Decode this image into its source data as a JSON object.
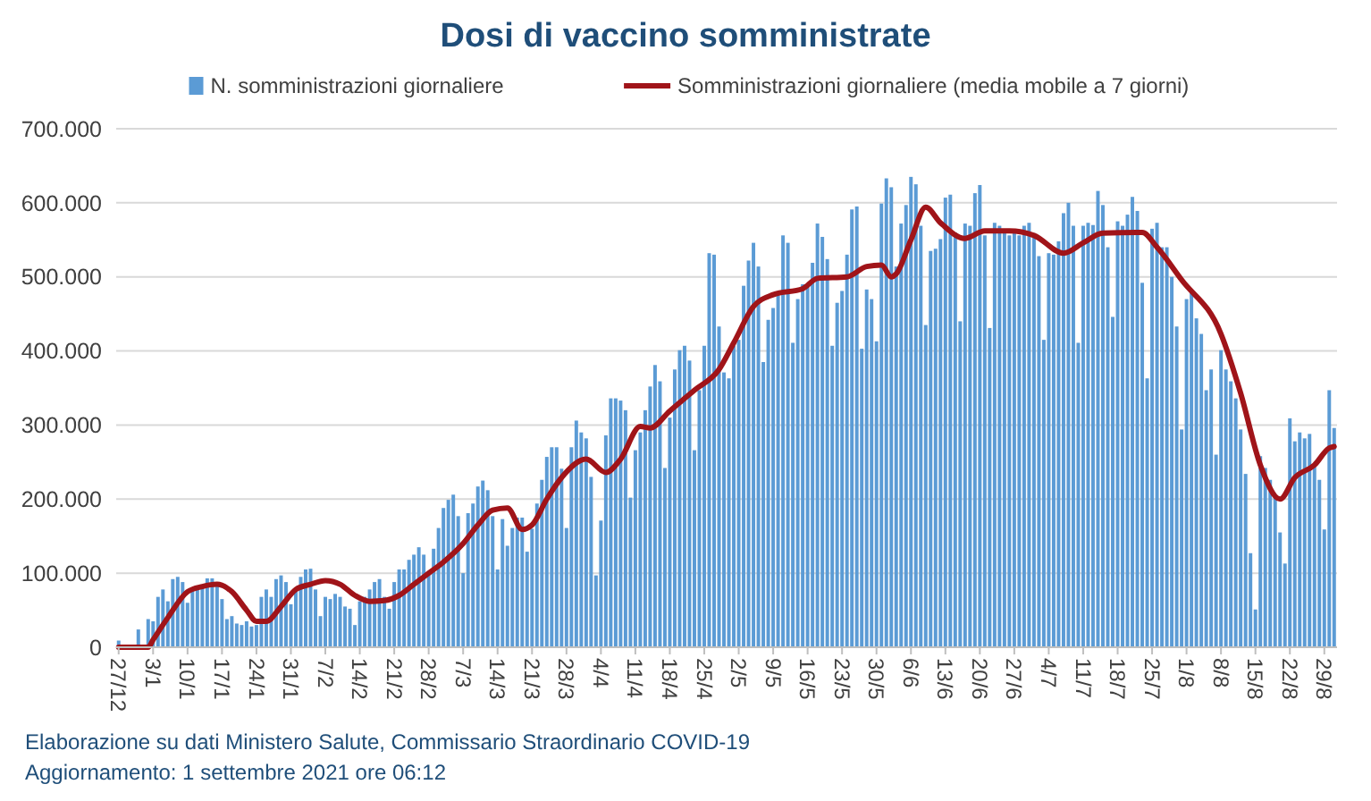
{
  "chart_data": {
    "type": "bar",
    "title": "Dosi di vaccino somministrate",
    "x": [
      "2020-12-27",
      "2020-12-28",
      "2020-12-29",
      "2020-12-30",
      "2020-12-31",
      "2021-01-01",
      "2021-01-02",
      "2021-01-03",
      "2021-01-04",
      "2021-01-05",
      "2021-01-06",
      "2021-01-07",
      "2021-01-08",
      "2021-01-09",
      "2021-01-10",
      "2021-01-11",
      "2021-01-12",
      "2021-01-13",
      "2021-01-14",
      "2021-01-15",
      "2021-01-16",
      "2021-01-17",
      "2021-01-18",
      "2021-01-19",
      "2021-01-20",
      "2021-01-21",
      "2021-01-22",
      "2021-01-23",
      "2021-01-24",
      "2021-01-25",
      "2021-01-26",
      "2021-01-27",
      "2021-01-28",
      "2021-01-29",
      "2021-01-30",
      "2021-01-31",
      "2021-02-01",
      "2021-02-02",
      "2021-02-03",
      "2021-02-04",
      "2021-02-05",
      "2021-02-06",
      "2021-02-07",
      "2021-02-08",
      "2021-02-09",
      "2021-02-10",
      "2021-02-11",
      "2021-02-12",
      "2021-02-13",
      "2021-02-14",
      "2021-02-15",
      "2021-02-16",
      "2021-02-17",
      "2021-02-18",
      "2021-02-19",
      "2021-02-20",
      "2021-02-21",
      "2021-02-22",
      "2021-02-23",
      "2021-02-24",
      "2021-02-25",
      "2021-02-26",
      "2021-02-27",
      "2021-02-28",
      "2021-03-01",
      "2021-03-02",
      "2021-03-03",
      "2021-03-04",
      "2021-03-05",
      "2021-03-06",
      "2021-03-07",
      "2021-03-08",
      "2021-03-09",
      "2021-03-10",
      "2021-03-11",
      "2021-03-12",
      "2021-03-13",
      "2021-03-14",
      "2021-03-15",
      "2021-03-16",
      "2021-03-17",
      "2021-03-18",
      "2021-03-19",
      "2021-03-20",
      "2021-03-21",
      "2021-03-22",
      "2021-03-23",
      "2021-03-24",
      "2021-03-25",
      "2021-03-26",
      "2021-03-27",
      "2021-03-28",
      "2021-03-29",
      "2021-03-30",
      "2021-03-31",
      "2021-04-01",
      "2021-04-02",
      "2021-04-03",
      "2021-04-04",
      "2021-04-05",
      "2021-04-06",
      "2021-04-07",
      "2021-04-08",
      "2021-04-09",
      "2021-04-10",
      "2021-04-11",
      "2021-04-12",
      "2021-04-13",
      "2021-04-14",
      "2021-04-15",
      "2021-04-16",
      "2021-04-17",
      "2021-04-18",
      "2021-04-19",
      "2021-04-20",
      "2021-04-21",
      "2021-04-22",
      "2021-04-23",
      "2021-04-24",
      "2021-04-25",
      "2021-04-26",
      "2021-04-27",
      "2021-04-28",
      "2021-04-29",
      "2021-04-30",
      "2021-05-01",
      "2021-05-02",
      "2021-05-03",
      "2021-05-04",
      "2021-05-05",
      "2021-05-06",
      "2021-05-07",
      "2021-05-08",
      "2021-05-09",
      "2021-05-10",
      "2021-05-11",
      "2021-05-12",
      "2021-05-13",
      "2021-05-14",
      "2021-05-15",
      "2021-05-16",
      "2021-05-17",
      "2021-05-18",
      "2021-05-19",
      "2021-05-20",
      "2021-05-21",
      "2021-05-22",
      "2021-05-23",
      "2021-05-24",
      "2021-05-25",
      "2021-05-26",
      "2021-05-27",
      "2021-05-28",
      "2021-05-29",
      "2021-05-30",
      "2021-05-31",
      "2021-06-01",
      "2021-06-02",
      "2021-06-03",
      "2021-06-04",
      "2021-06-05",
      "2021-06-06",
      "2021-06-07",
      "2021-06-08",
      "2021-06-09",
      "2021-06-10",
      "2021-06-11",
      "2021-06-12",
      "2021-06-13",
      "2021-06-14",
      "2021-06-15",
      "2021-06-16",
      "2021-06-17",
      "2021-06-18",
      "2021-06-19",
      "2021-06-20",
      "2021-06-21",
      "2021-06-22",
      "2021-06-23",
      "2021-06-24",
      "2021-06-25",
      "2021-06-26",
      "2021-06-27",
      "2021-06-28",
      "2021-06-29",
      "2021-06-30",
      "2021-07-01",
      "2021-07-02",
      "2021-07-03",
      "2021-07-04",
      "2021-07-05",
      "2021-07-06",
      "2021-07-07",
      "2021-07-08",
      "2021-07-09",
      "2021-07-10",
      "2021-07-11",
      "2021-07-12",
      "2021-07-13",
      "2021-07-14",
      "2021-07-15",
      "2021-07-16",
      "2021-07-17",
      "2021-07-18",
      "2021-07-19",
      "2021-07-20",
      "2021-07-21",
      "2021-07-22",
      "2021-07-23",
      "2021-07-24",
      "2021-07-25",
      "2021-07-26",
      "2021-07-27",
      "2021-07-28",
      "2021-07-29",
      "2021-07-30",
      "2021-07-31",
      "2021-08-01",
      "2021-08-02",
      "2021-08-03",
      "2021-08-04",
      "2021-08-05",
      "2021-08-06",
      "2021-08-07",
      "2021-08-08",
      "2021-08-09",
      "2021-08-10",
      "2021-08-11",
      "2021-08-12",
      "2021-08-13",
      "2021-08-14",
      "2021-08-15",
      "2021-08-16",
      "2021-08-17",
      "2021-08-18",
      "2021-08-19",
      "2021-08-20",
      "2021-08-21",
      "2021-08-22",
      "2021-08-23",
      "2021-08-24",
      "2021-08-25",
      "2021-08-26",
      "2021-08-27",
      "2021-08-28",
      "2021-08-29",
      "2021-08-30",
      "2021-08-31"
    ],
    "series": [
      {
        "name": "N. somministrazioni giornaliere",
        "color": "#5b9bd5",
        "values": [
          9000,
          1000,
          2000,
          1000,
          24000,
          3000,
          38000,
          35000,
          68000,
          78000,
          62000,
          92000,
          95000,
          88000,
          60000,
          78000,
          80000,
          82000,
          93000,
          93000,
          85000,
          65000,
          38000,
          42000,
          32000,
          30000,
          35000,
          28000,
          30000,
          68000,
          78000,
          68000,
          92000,
          97000,
          88000,
          58000,
          80000,
          95000,
          105000,
          106000,
          78000,
          42000,
          68000,
          65000,
          72000,
          68000,
          55000,
          52000,
          30000,
          62000,
          68000,
          78000,
          88000,
          92000,
          68000,
          52000,
          88000,
          105000,
          105000,
          118000,
          125000,
          135000,
          125000,
          100000,
          133000,
          161000,
          188000,
          199000,
          206000,
          177000,
          100000,
          181000,
          194000,
          217000,
          225000,
          212000,
          177000,
          105000,
          173000,
          137000,
          161000,
          175000,
          175000,
          129000,
          160000,
          194000,
          226000,
          257000,
          270000,
          270000,
          241000,
          161000,
          270000,
          306000,
          290000,
          282000,
          230000,
          97000,
          171000,
          286000,
          336000,
          336000,
          333000,
          320000,
          202000,
          266000,
          290000,
          320000,
          352000,
          381000,
          359000,
          242000,
          310000,
          375000,
          401000,
          407000,
          387000,
          266000,
          347000,
          407000,
          532000,
          530000,
          433000,
          371000,
          363000,
          407000,
          415000,
          488000,
          522000,
          546000,
          514000,
          385000,
          442000,
          458000,
          478000,
          556000,
          546000,
          411000,
          470000,
          490000,
          490000,
          519000,
          572000,
          554000,
          524000,
          407000,
          465000,
          481000,
          530000,
          591000,
          595000,
          403000,
          483000,
          470000,
          413000,
          599000,
          633000,
          621000,
          514000,
          572000,
          597000,
          635000,
          625000,
          569000,
          435000,
          535000,
          538000,
          551000,
          607000,
          611000,
          560000,
          440000,
          572000,
          569000,
          613000,
          624000,
          556000,
          431000,
          573000,
          569000,
          560000,
          556000,
          560000,
          556000,
          569000,
          573000,
          559000,
          528000,
          415000,
          532000,
          530000,
          548000,
          586000,
          600000,
          569000,
          411000,
          569000,
          573000,
          570000,
          616000,
          597000,
          540000,
          446000,
          575000,
          569000,
          584000,
          608000,
          589000,
          492000,
          363000,
          565000,
          573000,
          540000,
          540000,
          500000,
          433000,
          294000,
          470000,
          478000,
          444000,
          423000,
          347000,
          375000,
          260000,
          401000,
          375000,
          359000,
          336000,
          294000,
          234000,
          127000,
          51000,
          258000,
          242000,
          226000,
          205000,
          155000,
          113000,
          309000,
          278000,
          290000,
          282000,
          288000,
          245000,
          226000,
          159000,
          347000,
          296000
        ]
      },
      {
        "name": "Somministrazioni giornaliere (media mobile a 7 giorni)",
        "type": "line",
        "color": "#a01419",
        "x": [
          "2020-12-27",
          "2021-01-02",
          "2021-01-03",
          "2021-01-06",
          "2021-01-10",
          "2021-01-13",
          "2021-01-16",
          "2021-01-19",
          "2021-01-22",
          "2021-01-24",
          "2021-01-26",
          "2021-01-29",
          "2021-02-01",
          "2021-02-04",
          "2021-02-07",
          "2021-02-10",
          "2021-02-13",
          "2021-02-16",
          "2021-02-19",
          "2021-02-22",
          "2021-02-25",
          "2021-02-28",
          "2021-03-03",
          "2021-03-07",
          "2021-03-10",
          "2021-03-13",
          "2021-03-16",
          "2021-03-19",
          "2021-03-21",
          "2021-03-24",
          "2021-03-27",
          "2021-04-01",
          "2021-04-05",
          "2021-04-08",
          "2021-04-12",
          "2021-04-14",
          "2021-04-18",
          "2021-04-23",
          "2021-04-28",
          "2021-05-01",
          "2021-05-05",
          "2021-05-09",
          "2021-05-15",
          "2021-05-18",
          "2021-05-24",
          "2021-05-28",
          "2021-05-31",
          "2021-06-02",
          "2021-06-03",
          "2021-06-06",
          "2021-06-09",
          "2021-06-12",
          "2021-06-17",
          "2021-06-21",
          "2021-06-26",
          "2021-07-01",
          "2021-07-07",
          "2021-07-11",
          "2021-07-15",
          "2021-07-23",
          "2021-07-26",
          "2021-07-31",
          "2021-08-08",
          "2021-08-12",
          "2021-08-16",
          "2021-08-20",
          "2021-08-23",
          "2021-08-27",
          "2021-08-30",
          "2021-08-31"
        ],
        "values": [
          0,
          0,
          10000,
          40000,
          75000,
          82000,
          85000,
          75000,
          50000,
          35000,
          35000,
          55000,
          78000,
          85000,
          90000,
          85000,
          70000,
          62000,
          63000,
          70000,
          85000,
          100000,
          115000,
          140000,
          165000,
          185000,
          188000,
          159000,
          165000,
          200000,
          229000,
          254000,
          236000,
          254000,
          298000,
          296000,
          319000,
          347000,
          375000,
          411000,
          460000,
          476000,
          484000,
          498000,
          500000,
          514000,
          516000,
          500000,
          504000,
          550000,
          594000,
          573000,
          552000,
          562000,
          562000,
          556000,
          532000,
          546000,
          559000,
          560000,
          540000,
          496000,
          423000,
          343000,
          246000,
          200000,
          229000,
          246000,
          269000,
          271000
        ]
      }
    ],
    "xlim": [
      "2020-12-26T12:00",
      "2021-08-31T14:00"
    ],
    "xticks": [
      {
        "value": "2020-12-27",
        "label": "27/12"
      },
      {
        "value": "2021-01-03",
        "label": "3/1"
      },
      {
        "value": "2021-01-10",
        "label": "10/1"
      },
      {
        "value": "2021-01-17",
        "label": "17/1"
      },
      {
        "value": "2021-01-24",
        "label": "24/1"
      },
      {
        "value": "2021-01-31",
        "label": "31/1"
      },
      {
        "value": "2021-02-07",
        "label": "7/2"
      },
      {
        "value": "2021-02-14",
        "label": "14/2"
      },
      {
        "value": "2021-02-21",
        "label": "21/2"
      },
      {
        "value": "2021-02-28",
        "label": "28/2"
      },
      {
        "value": "2021-03-07",
        "label": "7/3"
      },
      {
        "value": "2021-03-14",
        "label": "14/3"
      },
      {
        "value": "2021-03-21",
        "label": "21/3"
      },
      {
        "value": "2021-03-28",
        "label": "28/3"
      },
      {
        "value": "2021-04-04",
        "label": "4/4"
      },
      {
        "value": "2021-04-11",
        "label": "11/4"
      },
      {
        "value": "2021-04-18",
        "label": "18/4"
      },
      {
        "value": "2021-04-25",
        "label": "25/4"
      },
      {
        "value": "2021-05-02",
        "label": "2/5"
      },
      {
        "value": "2021-05-09",
        "label": "9/5"
      },
      {
        "value": "2021-05-16",
        "label": "16/5"
      },
      {
        "value": "2021-05-23",
        "label": "23/5"
      },
      {
        "value": "2021-05-30",
        "label": "30/5"
      },
      {
        "value": "2021-06-06",
        "label": "6/6"
      },
      {
        "value": "2021-06-13",
        "label": "13/6"
      },
      {
        "value": "2021-06-20",
        "label": "20/6"
      },
      {
        "value": "2021-06-27",
        "label": "27/6"
      },
      {
        "value": "2021-07-04",
        "label": "4/7"
      },
      {
        "value": "2021-07-11",
        "label": "11/7"
      },
      {
        "value": "2021-07-18",
        "label": "18/7"
      },
      {
        "value": "2021-07-25",
        "label": "25/7"
      },
      {
        "value": "2021-08-01",
        "label": "1/8"
      },
      {
        "value": "2021-08-08",
        "label": "8/8"
      },
      {
        "value": "2021-08-15",
        "label": "15/8"
      },
      {
        "value": "2021-08-22",
        "label": "22/8"
      },
      {
        "value": "2021-08-29",
        "label": "29/8"
      }
    ],
    "ylim": [
      0,
      700000
    ],
    "yticks": [
      0,
      {
        "value": 100000,
        "label": "100.000"
      },
      {
        "value": 200000,
        "label": "200.000"
      },
      {
        "value": 300000,
        "label": "300.000"
      },
      {
        "value": 400000,
        "label": "400.000"
      },
      {
        "value": 500000,
        "label": "500.000"
      },
      {
        "value": 600000,
        "label": "600.000"
      },
      {
        "value": 700000,
        "label": "700.000"
      }
    ],
    "grid": "y",
    "legend": "top",
    "line_style": "solid",
    "marker": "none",
    "annotations": [
      "Elaborazione su dati Ministero Salute, Commissario Straordinario COVID-19",
      "Aggiornamento: 1 settembre 2021 ore 06:12"
    ]
  }
}
